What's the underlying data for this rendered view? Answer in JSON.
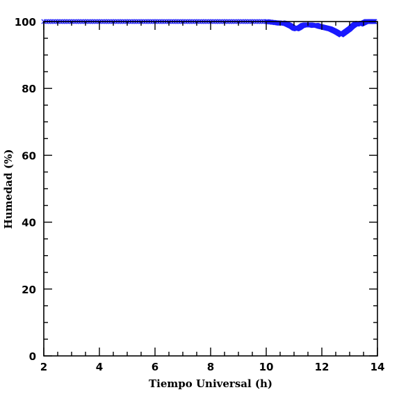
{
  "chart_data": {
    "type": "scatter",
    "title": "",
    "xlabel": "Tiempo Universal (h)",
    "ylabel": "Humedad (%)",
    "xlim": [
      2,
      14
    ],
    "ylim": [
      0,
      100
    ],
    "x_ticks": [
      "2",
      "4",
      "6",
      "8",
      "10",
      "12",
      "14"
    ],
    "y_ticks": [
      "0",
      "20",
      "40",
      "60",
      "80",
      "100"
    ],
    "x_tick_values": [
      2,
      4,
      6,
      8,
      10,
      12,
      14
    ],
    "y_tick_values": [
      0,
      20,
      40,
      60,
      80,
      100
    ],
    "grid": false,
    "marker": "x",
    "colors": {
      "series": "#1a1aff",
      "axes": "#000000",
      "background": "#ffffff"
    },
    "series": [
      {
        "x": [
          2.0,
          2.5,
          3.0,
          3.5,
          4.0,
          4.5,
          5.0,
          5.5,
          6.0,
          6.5,
          7.0,
          7.5,
          8.0,
          8.5,
          9.0,
          9.5,
          10.0,
          10.2,
          10.4,
          10.5,
          10.6,
          10.7,
          10.8,
          10.9,
          11.0,
          11.1,
          11.2,
          11.3,
          11.4,
          11.5,
          11.6,
          11.7,
          11.8,
          11.9,
          12.0,
          12.1,
          12.2,
          12.3,
          12.4,
          12.5,
          12.6,
          12.7,
          12.8,
          12.9,
          13.0,
          13.1,
          13.2,
          13.3,
          13.4,
          13.5,
          13.6,
          13.7,
          13.8,
          13.9
        ],
        "y": [
          100,
          100,
          100,
          100,
          100,
          100,
          100,
          100,
          100,
          100,
          100,
          100,
          100,
          100,
          100,
          100,
          100,
          99.8,
          99.6,
          99.5,
          99.6,
          99.4,
          99.0,
          98.6,
          98.0,
          97.8,
          98.2,
          98.8,
          99.0,
          99.0,
          99.0,
          98.8,
          98.9,
          98.6,
          98.4,
          98.2,
          98.0,
          97.8,
          97.4,
          97.0,
          96.5,
          96.0,
          96.6,
          97.2,
          97.8,
          98.6,
          99.2,
          99.5,
          99.2,
          99.6,
          100,
          100,
          100,
          100
        ]
      }
    ]
  }
}
